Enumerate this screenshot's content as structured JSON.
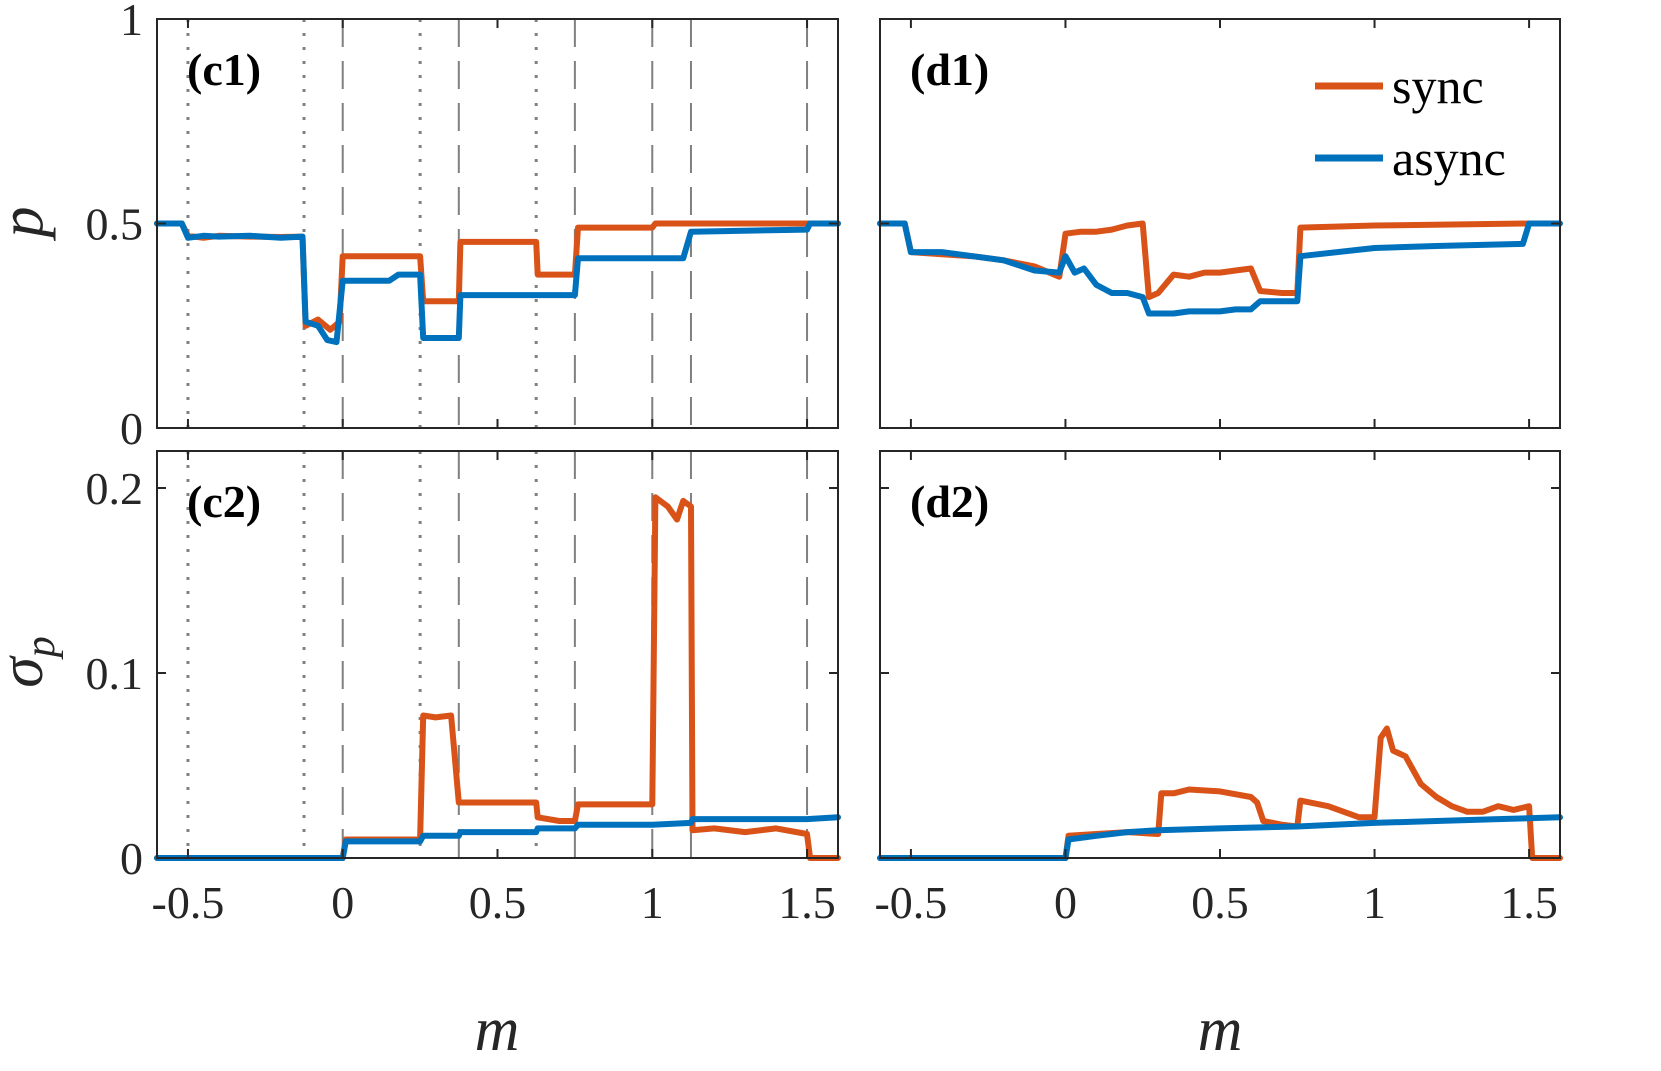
{
  "colors": {
    "sync": "#D95319",
    "async": "#0072BD",
    "axis": "#262626",
    "guide": "#808080"
  },
  "legend": {
    "placement": "top-right of panel d1",
    "entries": [
      {
        "key": "sync",
        "label": "sync"
      },
      {
        "key": "async",
        "label": "async"
      }
    ]
  },
  "x_axis": {
    "label": "m",
    "ticks": [
      {
        "value": -0.5,
        "label": "-0.5"
      },
      {
        "value": 0,
        "label": "0"
      },
      {
        "value": 0.5,
        "label": "0.5"
      },
      {
        "value": 1,
        "label": "1"
      },
      {
        "value": 1.5,
        "label": "1.5"
      }
    ]
  },
  "chart_data": [
    {
      "type": "line",
      "panel": "c1",
      "panel_label": "(c1)",
      "xlabel": "",
      "ylabel": "p",
      "xlim": [
        -0.6,
        1.6
      ],
      "ylim": [
        0,
        1
      ],
      "yticks": [
        {
          "value": 0,
          "label": "0"
        },
        {
          "value": 0.5,
          "label": "0.5"
        },
        {
          "value": 1,
          "label": "1"
        }
      ],
      "guides": {
        "dotted": [
          -0.5,
          -0.125,
          0.25,
          0.625
        ],
        "dashed": [
          0,
          0.375,
          0.75,
          1.0,
          1.125,
          1.5
        ]
      },
      "series": [
        {
          "name": "sync",
          "points": [
            [
              -0.6,
              0.5
            ],
            [
              -0.52,
              0.5
            ],
            [
              -0.5,
              0.47
            ],
            [
              -0.45,
              0.465
            ],
            [
              -0.4,
              0.47
            ],
            [
              -0.3,
              0.468
            ],
            [
              -0.2,
              0.467
            ],
            [
              -0.13,
              0.468
            ],
            [
              -0.12,
              0.25
            ],
            [
              -0.08,
              0.265
            ],
            [
              -0.04,
              0.24
            ],
            [
              -0.01,
              0.26
            ],
            [
              0,
              0.42
            ],
            [
              0.1,
              0.42
            ],
            [
              0.2,
              0.42
            ],
            [
              0.25,
              0.42
            ],
            [
              0.26,
              0.31
            ],
            [
              0.375,
              0.31
            ],
            [
              0.38,
              0.455
            ],
            [
              0.625,
              0.455
            ],
            [
              0.63,
              0.375
            ],
            [
              0.75,
              0.375
            ],
            [
              0.76,
              0.49
            ],
            [
              1.0,
              0.49
            ],
            [
              1.01,
              0.5
            ],
            [
              1.6,
              0.5
            ]
          ]
        },
        {
          "name": "async",
          "points": [
            [
              -0.6,
              0.5
            ],
            [
              -0.52,
              0.5
            ],
            [
              -0.5,
              0.465
            ],
            [
              -0.45,
              0.47
            ],
            [
              -0.4,
              0.468
            ],
            [
              -0.3,
              0.47
            ],
            [
              -0.2,
              0.465
            ],
            [
              -0.13,
              0.468
            ],
            [
              -0.12,
              0.26
            ],
            [
              -0.08,
              0.25
            ],
            [
              -0.05,
              0.215
            ],
            [
              -0.02,
              0.21
            ],
            [
              0,
              0.36
            ],
            [
              0.1,
              0.36
            ],
            [
              0.15,
              0.36
            ],
            [
              0.18,
              0.375
            ],
            [
              0.25,
              0.375
            ],
            [
              0.26,
              0.22
            ],
            [
              0.375,
              0.22
            ],
            [
              0.38,
              0.325
            ],
            [
              0.75,
              0.325
            ],
            [
              0.76,
              0.415
            ],
            [
              1.1,
              0.415
            ],
            [
              1.125,
              0.48
            ],
            [
              1.5,
              0.485
            ],
            [
              1.51,
              0.5
            ],
            [
              1.6,
              0.5
            ]
          ]
        }
      ]
    },
    {
      "type": "line",
      "panel": "d1",
      "panel_label": "(d1)",
      "xlabel": "",
      "ylabel": "",
      "xlim": [
        -0.6,
        1.6
      ],
      "ylim": [
        0,
        1
      ],
      "yticks": [
        {
          "value": 0,
          "label": ""
        },
        {
          "value": 0.5,
          "label": ""
        },
        {
          "value": 1,
          "label": ""
        }
      ],
      "guides": {
        "dotted": [],
        "dashed": []
      },
      "series": [
        {
          "name": "sync",
          "points": [
            [
              -0.6,
              0.5
            ],
            [
              -0.52,
              0.5
            ],
            [
              -0.5,
              0.43
            ],
            [
              -0.4,
              0.425
            ],
            [
              -0.3,
              0.42
            ],
            [
              -0.2,
              0.41
            ],
            [
              -0.1,
              0.395
            ],
            [
              -0.02,
              0.37
            ],
            [
              0,
              0.475
            ],
            [
              0.05,
              0.48
            ],
            [
              0.1,
              0.48
            ],
            [
              0.15,
              0.485
            ],
            [
              0.2,
              0.495
            ],
            [
              0.25,
              0.5
            ],
            [
              0.27,
              0.32
            ],
            [
              0.3,
              0.33
            ],
            [
              0.35,
              0.375
            ],
            [
              0.4,
              0.37
            ],
            [
              0.45,
              0.38
            ],
            [
              0.5,
              0.38
            ],
            [
              0.55,
              0.385
            ],
            [
              0.6,
              0.39
            ],
            [
              0.63,
              0.335
            ],
            [
              0.7,
              0.33
            ],
            [
              0.75,
              0.33
            ],
            [
              0.76,
              0.49
            ],
            [
              1.0,
              0.495
            ],
            [
              1.5,
              0.5
            ]
          ]
        },
        {
          "name": "async",
          "points": [
            [
              -0.6,
              0.5
            ],
            [
              -0.52,
              0.5
            ],
            [
              -0.5,
              0.43
            ],
            [
              -0.4,
              0.43
            ],
            [
              -0.3,
              0.42
            ],
            [
              -0.2,
              0.41
            ],
            [
              -0.1,
              0.385
            ],
            [
              -0.02,
              0.38
            ],
            [
              0,
              0.42
            ],
            [
              0.03,
              0.38
            ],
            [
              0.06,
              0.39
            ],
            [
              0.1,
              0.35
            ],
            [
              0.15,
              0.33
            ],
            [
              0.2,
              0.33
            ],
            [
              0.25,
              0.32
            ],
            [
              0.27,
              0.28
            ],
            [
              0.35,
              0.28
            ],
            [
              0.4,
              0.285
            ],
            [
              0.5,
              0.285
            ],
            [
              0.55,
              0.29
            ],
            [
              0.6,
              0.29
            ],
            [
              0.63,
              0.31
            ],
            [
              0.75,
              0.31
            ],
            [
              0.76,
              0.42
            ],
            [
              1.0,
              0.44
            ],
            [
              1.2,
              0.445
            ],
            [
              1.48,
              0.45
            ],
            [
              1.5,
              0.5
            ],
            [
              1.6,
              0.5
            ]
          ]
        }
      ]
    },
    {
      "type": "line",
      "panel": "c2",
      "panel_label": "(c2)",
      "xlabel": "m",
      "ylabel": "σp",
      "xlim": [
        -0.6,
        1.6
      ],
      "ylim": [
        0,
        0.22
      ],
      "yticks": [
        {
          "value": 0,
          "label": "0"
        },
        {
          "value": 0.1,
          "label": "0.1"
        },
        {
          "value": 0.2,
          "label": "0.2"
        }
      ],
      "guides": {
        "dotted": [
          -0.5,
          -0.125,
          0.25,
          0.625
        ],
        "dashed": [
          0,
          0.375,
          0.75,
          1.0,
          1.125,
          1.5
        ]
      },
      "series": [
        {
          "name": "sync",
          "points": [
            [
              -0.6,
              0
            ],
            [
              0,
              0
            ],
            [
              0.01,
              0.01
            ],
            [
              0.1,
              0.01
            ],
            [
              0.25,
              0.01
            ],
            [
              0.26,
              0.077
            ],
            [
              0.3,
              0.076
            ],
            [
              0.35,
              0.077
            ],
            [
              0.375,
              0.03
            ],
            [
              0.625,
              0.03
            ],
            [
              0.63,
              0.022
            ],
            [
              0.7,
              0.02
            ],
            [
              0.75,
              0.02
            ],
            [
              0.76,
              0.029
            ],
            [
              1.0,
              0.029
            ],
            [
              1.01,
              0.195
            ],
            [
              1.05,
              0.19
            ],
            [
              1.08,
              0.183
            ],
            [
              1.1,
              0.193
            ],
            [
              1.125,
              0.19
            ],
            [
              1.13,
              0.015
            ],
            [
              1.2,
              0.016
            ],
            [
              1.3,
              0.014
            ],
            [
              1.4,
              0.016
            ],
            [
              1.5,
              0.013
            ],
            [
              1.51,
              0
            ],
            [
              1.6,
              0
            ]
          ]
        },
        {
          "name": "async",
          "points": [
            [
              -0.6,
              0
            ],
            [
              0,
              0
            ],
            [
              0.01,
              0.009
            ],
            [
              0.25,
              0.009
            ],
            [
              0.26,
              0.012
            ],
            [
              0.375,
              0.012
            ],
            [
              0.38,
              0.014
            ],
            [
              0.625,
              0.014
            ],
            [
              0.63,
              0.016
            ],
            [
              0.75,
              0.016
            ],
            [
              0.76,
              0.018
            ],
            [
              1.0,
              0.018
            ],
            [
              1.125,
              0.019
            ],
            [
              1.13,
              0.021
            ],
            [
              1.5,
              0.021
            ],
            [
              1.6,
              0.022
            ]
          ]
        }
      ]
    },
    {
      "type": "line",
      "panel": "d2",
      "panel_label": "(d2)",
      "xlabel": "m",
      "ylabel": "",
      "xlim": [
        -0.6,
        1.6
      ],
      "ylim": [
        0,
        0.22
      ],
      "yticks": [
        {
          "value": 0,
          "label": ""
        },
        {
          "value": 0.1,
          "label": ""
        },
        {
          "value": 0.2,
          "label": ""
        }
      ],
      "guides": {
        "dotted": [],
        "dashed": []
      },
      "series": [
        {
          "name": "sync",
          "points": [
            [
              -0.6,
              0
            ],
            [
              0,
              0
            ],
            [
              0.01,
              0.012
            ],
            [
              0.1,
              0.013
            ],
            [
              0.2,
              0.014
            ],
            [
              0.3,
              0.013
            ],
            [
              0.31,
              0.035
            ],
            [
              0.35,
              0.035
            ],
            [
              0.4,
              0.037
            ],
            [
              0.5,
              0.036
            ],
            [
              0.6,
              0.033
            ],
            [
              0.62,
              0.03
            ],
            [
              0.64,
              0.02
            ],
            [
              0.7,
              0.018
            ],
            [
              0.75,
              0.017
            ],
            [
              0.76,
              0.031
            ],
            [
              0.85,
              0.028
            ],
            [
              0.95,
              0.022
            ],
            [
              1.0,
              0.022
            ],
            [
              1.02,
              0.065
            ],
            [
              1.04,
              0.07
            ],
            [
              1.06,
              0.058
            ],
            [
              1.1,
              0.055
            ],
            [
              1.15,
              0.04
            ],
            [
              1.2,
              0.033
            ],
            [
              1.25,
              0.028
            ],
            [
              1.3,
              0.025
            ],
            [
              1.35,
              0.025
            ],
            [
              1.4,
              0.028
            ],
            [
              1.45,
              0.026
            ],
            [
              1.5,
              0.028
            ],
            [
              1.51,
              0
            ],
            [
              1.6,
              0
            ]
          ]
        },
        {
          "name": "async",
          "points": [
            [
              -0.6,
              0
            ],
            [
              0,
              0
            ],
            [
              0.01,
              0.01
            ],
            [
              0.1,
              0.012
            ],
            [
              0.2,
              0.014
            ],
            [
              0.3,
              0.015
            ],
            [
              0.5,
              0.016
            ],
            [
              0.75,
              0.017
            ],
            [
              1.0,
              0.019
            ],
            [
              1.2,
              0.02
            ],
            [
              1.4,
              0.021
            ],
            [
              1.6,
              0.022
            ]
          ]
        }
      ]
    }
  ]
}
